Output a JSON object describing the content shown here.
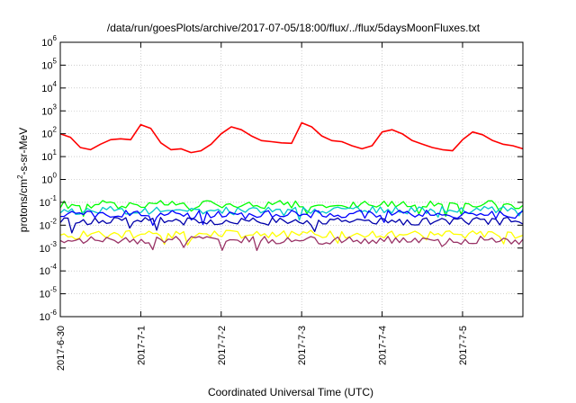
{
  "chart_data": {
    "type": "line",
    "title": "/data/run/goesPlots/archive/2017-07-05/18:00/flux/../flux/5daysMoonFluxes.txt",
    "xlabel": "Coordinated Universal Time (UTC)",
    "ylabel_prefix": "protons/cm",
    "ylabel_sup": "2",
    "ylabel_suffix": "-s-sr-MeV",
    "y_scale": "log",
    "ylim": [
      1e-06,
      1000000.0
    ],
    "y_ticks": [
      {
        "base": "10",
        "exp": "-6"
      },
      {
        "base": "10",
        "exp": "-5"
      },
      {
        "base": "10",
        "exp": "-4"
      },
      {
        "base": "10",
        "exp": "-3"
      },
      {
        "base": "10",
        "exp": "-2"
      },
      {
        "base": "10",
        "exp": "-1"
      },
      {
        "base": "10",
        "exp": "0"
      },
      {
        "base": "10",
        "exp": "1"
      },
      {
        "base": "10",
        "exp": "2"
      },
      {
        "base": "10",
        "exp": "3"
      },
      {
        "base": "10",
        "exp": "4"
      },
      {
        "base": "10",
        "exp": "5"
      },
      {
        "base": "10",
        "exp": "6"
      }
    ],
    "x_ticks": [
      "2017-6-30",
      "2017-7-1",
      "2017-7-2",
      "2017-7-3",
      "2017-7-4",
      "2017-7-5"
    ],
    "xlim": [
      "2017-06-30 00:00",
      "2017-07-05 18:00"
    ],
    "grid": true,
    "series": [
      {
        "color": "#ff0000",
        "x": [
          "2017-06-30 00:00",
          "2017-06-30 03:00",
          "2017-06-30 06:00",
          "2017-06-30 09:00",
          "2017-06-30 12:00",
          "2017-06-30 15:00",
          "2017-06-30 18:00",
          "2017-06-30 21:00",
          "2017-07-01 00:00",
          "2017-07-01 03:00",
          "2017-07-01 06:00",
          "2017-07-01 09:00",
          "2017-07-01 12:00",
          "2017-07-01 15:00",
          "2017-07-01 18:00",
          "2017-07-01 21:00",
          "2017-07-02 00:00",
          "2017-07-02 03:00",
          "2017-07-02 06:00",
          "2017-07-02 09:00",
          "2017-07-02 12:00",
          "2017-07-02 15:00",
          "2017-07-02 18:00",
          "2017-07-02 21:00",
          "2017-07-03 00:00",
          "2017-07-03 03:00",
          "2017-07-03 06:00",
          "2017-07-03 09:00",
          "2017-07-03 12:00",
          "2017-07-03 15:00",
          "2017-07-03 18:00",
          "2017-07-03 21:00",
          "2017-07-04 00:00",
          "2017-07-04 03:00",
          "2017-07-04 06:00",
          "2017-07-04 09:00",
          "2017-07-04 12:00",
          "2017-07-04 15:00",
          "2017-07-04 18:00",
          "2017-07-04 21:00",
          "2017-07-05 00:00",
          "2017-07-05 03:00",
          "2017-07-05 06:00",
          "2017-07-05 09:00",
          "2017-07-05 12:00",
          "2017-07-05 15:00",
          "2017-07-05 18:00"
        ],
        "values": [
          100,
          70,
          25,
          20,
          35,
          55,
          60,
          55,
          250,
          170,
          40,
          20,
          22,
          15,
          18,
          35,
          100,
          200,
          150,
          80,
          50,
          45,
          40,
          38,
          300,
          200,
          80,
          50,
          45,
          30,
          22,
          30,
          120,
          150,
          100,
          50,
          35,
          25,
          20,
          18,
          55,
          120,
          90,
          50,
          35,
          30,
          22
        ]
      },
      {
        "color": "#00ff00",
        "x": [
          "2017-06-30 00:00",
          "2017-07-05 18:00"
        ],
        "values": [
          0.08,
          0.08
        ]
      },
      {
        "color": "#00c8c8",
        "x": [
          "2017-06-30 00:00",
          "2017-07-05 18:00"
        ],
        "values": [
          0.045,
          0.045
        ]
      },
      {
        "color": "#0000ff",
        "x": [
          "2017-06-30 00:00",
          "2017-07-05 18:00"
        ],
        "values": [
          0.03,
          0.03
        ]
      },
      {
        "color": "#0000aa",
        "x": [
          "2017-06-30 00:00",
          "2017-07-05 18:00"
        ],
        "values": [
          0.015,
          0.015
        ]
      },
      {
        "color": "#ffff00",
        "x": [
          "2017-06-30 00:00",
          "2017-07-05 18:00"
        ],
        "values": [
          0.004,
          0.004
        ]
      },
      {
        "color": "#993366",
        "x": [
          "2017-06-30 00:00",
          "2017-07-05 18:00"
        ],
        "values": [
          0.0022,
          0.0022
        ]
      }
    ]
  }
}
